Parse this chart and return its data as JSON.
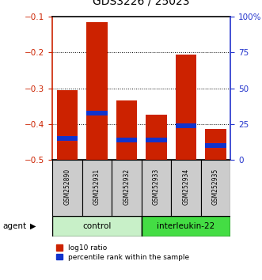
{
  "title": "GDS3226 / 25023",
  "samples": [
    "GSM252890",
    "GSM252931",
    "GSM252932",
    "GSM252933",
    "GSM252934",
    "GSM252935"
  ],
  "log10_ratio": [
    -0.305,
    -0.115,
    -0.335,
    -0.375,
    -0.205,
    -0.415
  ],
  "log10_bottom": [
    -0.5,
    -0.5,
    -0.5,
    -0.5,
    -0.5,
    -0.5
  ],
  "percentile_rank": [
    -0.44,
    -0.37,
    -0.445,
    -0.445,
    -0.405,
    -0.46
  ],
  "ylim_left": [
    -0.5,
    -0.1
  ],
  "ylim_right": [
    0,
    100
  ],
  "yticks_left": [
    -0.5,
    -0.4,
    -0.3,
    -0.2,
    -0.1
  ],
  "yticks_right": [
    0,
    25,
    50,
    75,
    100
  ],
  "ytick_labels_right": [
    "0",
    "25",
    "50",
    "75",
    "100%"
  ],
  "grid_lines": [
    -0.2,
    -0.3,
    -0.4
  ],
  "bar_color": "#cc2200",
  "percentile_color": "#1133cc",
  "left_axis_color": "#cc2200",
  "right_axis_color": "#2233cc",
  "bar_width": 0.7,
  "control_color": "#c8f0c8",
  "interleukin_color": "#44dd44",
  "sample_box_color": "#cccccc",
  "legend_ratio_label": "log10 ratio",
  "legend_rank_label": "percentile rank within the sample",
  "agent_label": "agent"
}
